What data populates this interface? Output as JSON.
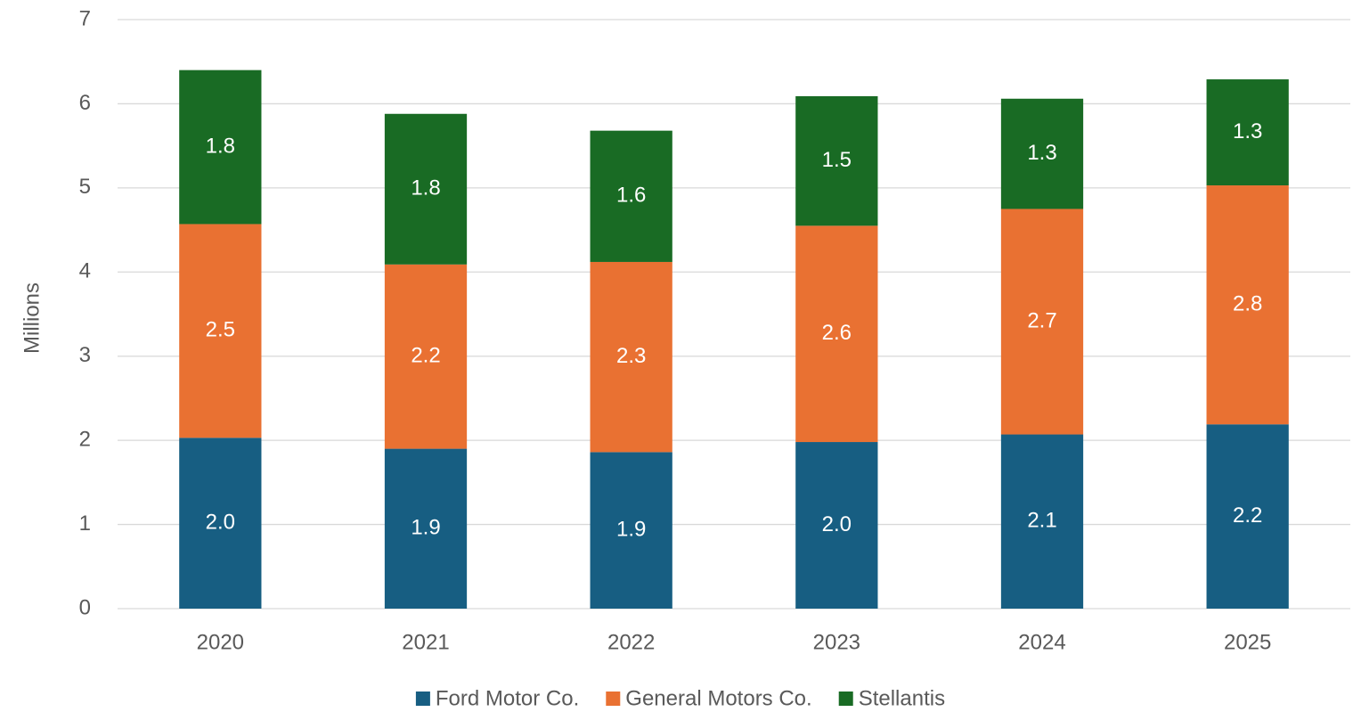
{
  "chart_data": {
    "type": "stacked_bar",
    "y_label": "Millions",
    "categories": [
      "2020",
      "2021",
      "2022",
      "2023",
      "2024",
      "2025"
    ],
    "series": [
      {
        "name": "Ford Motor Co.",
        "color": "#175e82",
        "values": [
          2.03,
          1.9,
          1.86,
          1.98,
          2.07,
          2.19
        ],
        "value_labels": [
          "2.0",
          "1.9",
          "1.9",
          "2.0",
          "2.1",
          "2.2"
        ]
      },
      {
        "name": "General Motors Co.",
        "color": "#e97132",
        "values": [
          2.54,
          2.19,
          2.26,
          2.57,
          2.68,
          2.84
        ],
        "value_labels": [
          "2.5",
          "2.2",
          "2.3",
          "2.6",
          "2.7",
          "2.8"
        ]
      },
      {
        "name": "Stellantis",
        "color": "#196b24",
        "values": [
          1.83,
          1.79,
          1.56,
          1.54,
          1.31,
          1.26
        ],
        "value_labels": [
          "1.8",
          "1.8",
          "1.6",
          "1.5",
          "1.3",
          "1.3"
        ]
      }
    ],
    "ylim": [
      0,
      7
    ],
    "yticks": [
      0,
      1,
      2,
      3,
      4,
      5,
      6,
      7
    ],
    "grid": true,
    "legend": "bottom"
  }
}
